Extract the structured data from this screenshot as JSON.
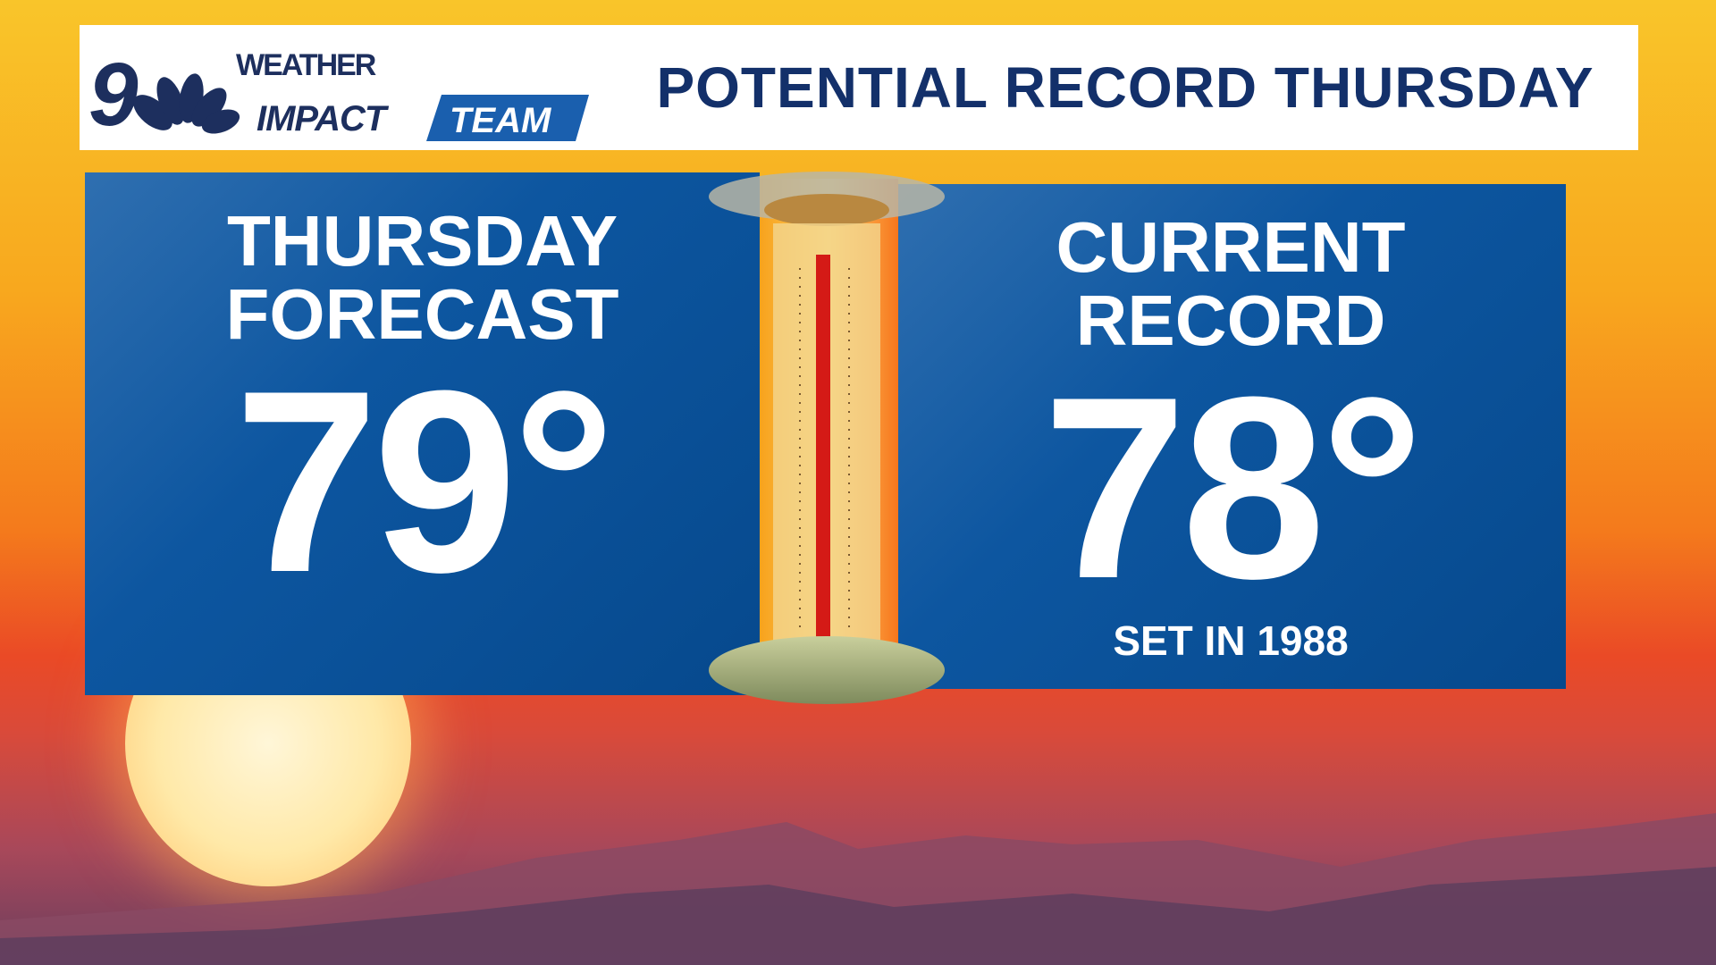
{
  "header": {
    "station_logo": "9 NBC",
    "brand_logo": "WEATHER IMPACT TEAM",
    "title": "POTENTIAL RECORD THURSDAY"
  },
  "forecast": {
    "label_line1": "THURSDAY",
    "label_line2": "FORECAST",
    "temperature": "79°"
  },
  "record": {
    "label_line1": "CURRENT",
    "label_line2": "RECORD",
    "temperature": "78°",
    "note": "SET IN 1988"
  },
  "colors": {
    "navy": "#13306a",
    "panel_blue": "#0d56a0",
    "team_blue": "#1a5fae"
  }
}
